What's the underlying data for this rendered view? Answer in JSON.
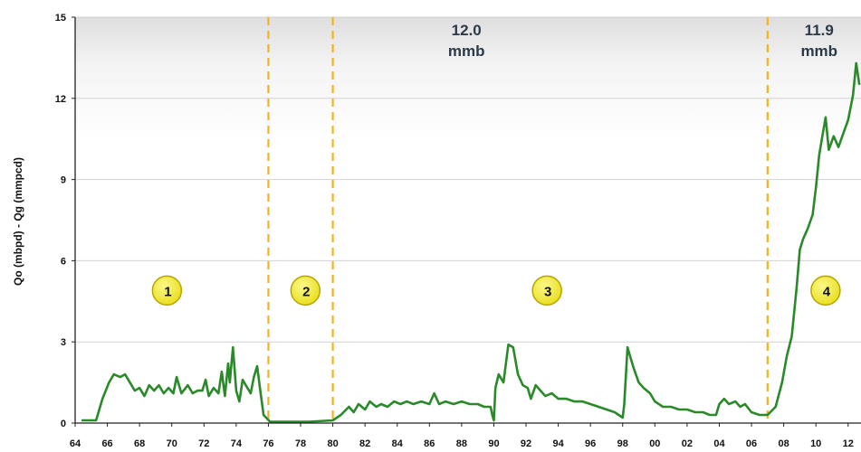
{
  "chart_data": {
    "type": "line",
    "title": "",
    "xlabel": "",
    "ylabel": "Qo (mbpd) - Qg (mmpcd)",
    "xlim": [
      1964,
      2012.8
    ],
    "ylim": [
      0,
      15
    ],
    "y_ticks": [
      "0",
      "3",
      "6",
      "9",
      "12",
      "15"
    ],
    "x_ticks": [
      "64",
      "66",
      "68",
      "70",
      "72",
      "74",
      "76",
      "78",
      "80",
      "82",
      "84",
      "86",
      "88",
      "90",
      "92",
      "94",
      "96",
      "98",
      "00",
      "02",
      "04",
      "06",
      "08",
      "10",
      "12"
    ],
    "x_tick_years": [
      1964,
      1966,
      1968,
      1970,
      1972,
      1974,
      1976,
      1978,
      1980,
      1982,
      1984,
      1986,
      1988,
      1990,
      1992,
      1994,
      1996,
      1998,
      2000,
      2002,
      2004,
      2006,
      2008,
      2010,
      2012
    ],
    "grid": true,
    "colors": {
      "series": "#2a8a2a",
      "divider": "#f3b31f",
      "marker_fill": "#f4ee2a",
      "marker_stroke": "#b8a400"
    },
    "dividers": [
      1976,
      1980,
      2007
    ],
    "annotations": [
      {
        "line1": "12.0",
        "line2": "mmb",
        "x": 1988.3,
        "y": 14.5
      },
      {
        "line1": "11.9",
        "line2": "mmb",
        "x": 2010.2,
        "y": 14.5
      }
    ],
    "markers": [
      {
        "label": "1",
        "x": 1969.7,
        "y": 4.9
      },
      {
        "label": "2",
        "x": 1978.3,
        "y": 4.9
      },
      {
        "label": "3",
        "x": 1993.3,
        "y": 4.9
      },
      {
        "label": "4",
        "x": 2010.6,
        "y": 4.9
      }
    ],
    "series": [
      {
        "points": [
          [
            1964.4,
            0.1
          ],
          [
            1965.3,
            0.1
          ],
          [
            1965.7,
            0.9
          ],
          [
            1966.1,
            1.5
          ],
          [
            1966.4,
            1.8
          ],
          [
            1966.8,
            1.7
          ],
          [
            1967.1,
            1.8
          ],
          [
            1967.4,
            1.5
          ],
          [
            1967.7,
            1.2
          ],
          [
            1968.0,
            1.3
          ],
          [
            1968.3,
            1.0
          ],
          [
            1968.6,
            1.4
          ],
          [
            1968.9,
            1.2
          ],
          [
            1969.2,
            1.4
          ],
          [
            1969.5,
            1.1
          ],
          [
            1969.8,
            1.3
          ],
          [
            1970.1,
            1.1
          ],
          [
            1970.3,
            1.7
          ],
          [
            1970.6,
            1.1
          ],
          [
            1971.0,
            1.4
          ],
          [
            1971.3,
            1.1
          ],
          [
            1971.6,
            1.2
          ],
          [
            1971.9,
            1.2
          ],
          [
            1972.1,
            1.6
          ],
          [
            1972.3,
            1.0
          ],
          [
            1972.6,
            1.3
          ],
          [
            1972.9,
            1.1
          ],
          [
            1973.1,
            1.9
          ],
          [
            1973.3,
            1.0
          ],
          [
            1973.5,
            2.2
          ],
          [
            1973.6,
            1.5
          ],
          [
            1973.8,
            2.8
          ],
          [
            1974.0,
            1.2
          ],
          [
            1974.2,
            0.8
          ],
          [
            1974.4,
            1.6
          ],
          [
            1974.7,
            1.3
          ],
          [
            1974.9,
            1.1
          ],
          [
            1975.1,
            1.7
          ],
          [
            1975.3,
            2.1
          ],
          [
            1975.5,
            1.2
          ],
          [
            1975.7,
            0.3
          ],
          [
            1976.1,
            0.05
          ],
          [
            1977.0,
            0.05
          ],
          [
            1978.5,
            0.05
          ],
          [
            1980.0,
            0.1
          ],
          [
            1980.5,
            0.3
          ],
          [
            1981.0,
            0.6
          ],
          [
            1981.3,
            0.4
          ],
          [
            1981.6,
            0.7
          ],
          [
            1982.0,
            0.5
          ],
          [
            1982.3,
            0.8
          ],
          [
            1982.7,
            0.6
          ],
          [
            1983.0,
            0.7
          ],
          [
            1983.4,
            0.6
          ],
          [
            1983.8,
            0.8
          ],
          [
            1984.2,
            0.7
          ],
          [
            1984.6,
            0.8
          ],
          [
            1985.0,
            0.7
          ],
          [
            1985.5,
            0.8
          ],
          [
            1986.0,
            0.7
          ],
          [
            1986.3,
            1.1
          ],
          [
            1986.6,
            0.7
          ],
          [
            1987.0,
            0.8
          ],
          [
            1987.5,
            0.7
          ],
          [
            1988.0,
            0.8
          ],
          [
            1988.5,
            0.7
          ],
          [
            1989.0,
            0.7
          ],
          [
            1989.4,
            0.6
          ],
          [
            1989.8,
            0.6
          ],
          [
            1989.9,
            0.3
          ],
          [
            1990.0,
            0.1
          ],
          [
            1990.1,
            1.3
          ],
          [
            1990.3,
            1.8
          ],
          [
            1990.6,
            1.5
          ],
          [
            1990.9,
            2.9
          ],
          [
            1991.2,
            2.8
          ],
          [
            1991.5,
            1.8
          ],
          [
            1991.8,
            1.4
          ],
          [
            1992.1,
            1.3
          ],
          [
            1992.3,
            0.9
          ],
          [
            1992.6,
            1.4
          ],
          [
            1992.9,
            1.2
          ],
          [
            1993.2,
            1.0
          ],
          [
            1993.6,
            1.1
          ],
          [
            1994.0,
            0.9
          ],
          [
            1994.5,
            0.9
          ],
          [
            1995.0,
            0.8
          ],
          [
            1995.5,
            0.8
          ],
          [
            1996.0,
            0.7
          ],
          [
            1996.5,
            0.6
          ],
          [
            1997.0,
            0.5
          ],
          [
            1997.5,
            0.4
          ],
          [
            1998.0,
            0.2
          ],
          [
            1998.1,
            0.7
          ],
          [
            1998.3,
            2.8
          ],
          [
            1998.5,
            2.4
          ],
          [
            1998.7,
            2.0
          ],
          [
            1999.0,
            1.5
          ],
          [
            1999.3,
            1.3
          ],
          [
            1999.7,
            1.1
          ],
          [
            2000.0,
            0.8
          ],
          [
            2000.5,
            0.6
          ],
          [
            2001.0,
            0.6
          ],
          [
            2001.5,
            0.5
          ],
          [
            2002.0,
            0.5
          ],
          [
            2002.5,
            0.4
          ],
          [
            2003.0,
            0.4
          ],
          [
            2003.4,
            0.3
          ],
          [
            2003.8,
            0.3
          ],
          [
            2004.0,
            0.7
          ],
          [
            2004.3,
            0.9
          ],
          [
            2004.6,
            0.7
          ],
          [
            2005.0,
            0.8
          ],
          [
            2005.3,
            0.6
          ],
          [
            2005.6,
            0.7
          ],
          [
            2006.0,
            0.4
          ],
          [
            2006.5,
            0.3
          ],
          [
            2007.0,
            0.3
          ],
          [
            2007.5,
            0.6
          ],
          [
            2007.9,
            1.5
          ],
          [
            2008.2,
            2.5
          ],
          [
            2008.5,
            3.2
          ],
          [
            2008.8,
            5.0
          ],
          [
            2009.0,
            6.4
          ],
          [
            2009.2,
            6.8
          ],
          [
            2009.5,
            7.2
          ],
          [
            2009.8,
            7.7
          ],
          [
            2010.0,
            8.7
          ],
          [
            2010.2,
            9.9
          ],
          [
            2010.4,
            10.6
          ],
          [
            2010.6,
            11.3
          ],
          [
            2010.8,
            10.1
          ],
          [
            2011.1,
            10.6
          ],
          [
            2011.4,
            10.2
          ],
          [
            2011.7,
            10.7
          ],
          [
            2012.0,
            11.2
          ],
          [
            2012.3,
            12.1
          ],
          [
            2012.5,
            13.3
          ],
          [
            2012.7,
            12.5
          ]
        ]
      }
    ]
  }
}
